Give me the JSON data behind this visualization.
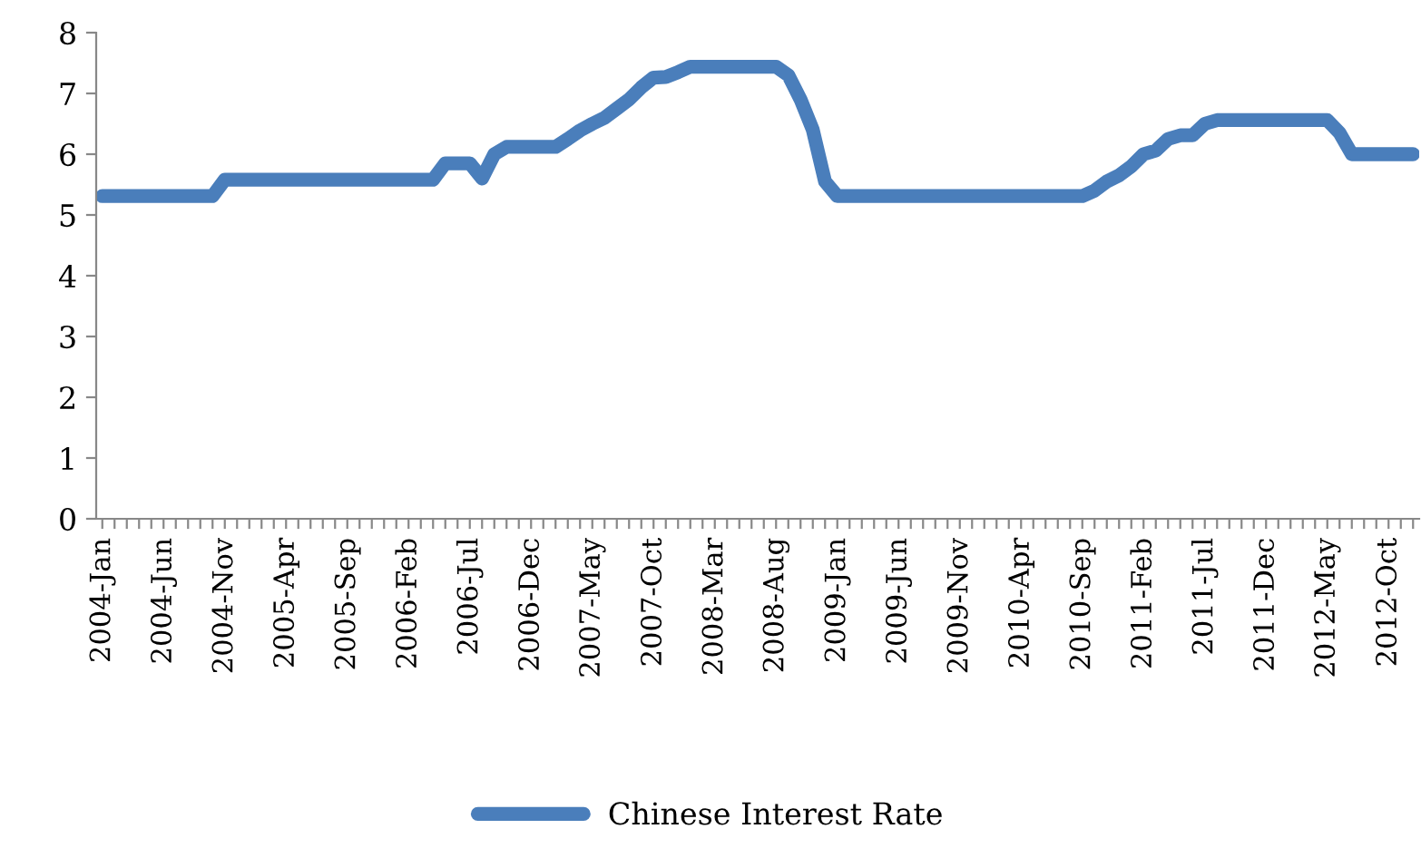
{
  "chart_data": {
    "type": "line",
    "categories": [
      "2004-Jan",
      null,
      null,
      null,
      null,
      "2004-Jun",
      null,
      null,
      null,
      null,
      "2004-Nov",
      null,
      null,
      null,
      null,
      "2005-Apr",
      null,
      null,
      null,
      null,
      "2005-Sep",
      null,
      null,
      null,
      null,
      "2006-Feb",
      null,
      null,
      null,
      null,
      "2006-Jul",
      null,
      null,
      null,
      null,
      "2006-Dec",
      null,
      null,
      null,
      null,
      "2007-May",
      null,
      null,
      null,
      null,
      "2007-Oct",
      null,
      null,
      null,
      null,
      "2008-Mar",
      null,
      null,
      null,
      null,
      "2008-Aug",
      null,
      null,
      null,
      null,
      "2009-Jan",
      null,
      null,
      null,
      null,
      "2009-Jun",
      null,
      null,
      null,
      null,
      "2009-Nov",
      null,
      null,
      null,
      null,
      "2010-Apr",
      null,
      null,
      null,
      null,
      "2010-Sep",
      null,
      null,
      null,
      null,
      "2011-Feb",
      null,
      null,
      null,
      null,
      "2011-Jul",
      null,
      null,
      null,
      null,
      "2011-Dec",
      null,
      null,
      null,
      null,
      "2012-May",
      null,
      null,
      null,
      null,
      "2012-Oct",
      null,
      null
    ],
    "series": [
      {
        "name": "Chinese Interest Rate",
        "color": "#4a7ebb",
        "values": [
          5.31,
          5.31,
          5.31,
          5.31,
          5.31,
          5.31,
          5.31,
          5.31,
          5.31,
          5.31,
          5.58,
          5.58,
          5.58,
          5.58,
          5.58,
          5.58,
          5.58,
          5.58,
          5.58,
          5.58,
          5.58,
          5.58,
          5.58,
          5.58,
          5.58,
          5.58,
          5.58,
          5.58,
          5.85,
          5.85,
          5.85,
          5.6,
          6.0,
          6.12,
          6.12,
          6.12,
          6.12,
          6.12,
          6.25,
          6.39,
          6.5,
          6.6,
          6.75,
          6.9,
          7.1,
          7.26,
          7.27,
          7.35,
          7.44,
          7.44,
          7.44,
          7.44,
          7.44,
          7.44,
          7.44,
          7.44,
          7.3,
          6.9,
          6.4,
          5.55,
          5.31,
          5.31,
          5.31,
          5.31,
          5.31,
          5.31,
          5.31,
          5.31,
          5.31,
          5.31,
          5.31,
          5.31,
          5.31,
          5.31,
          5.31,
          5.31,
          5.31,
          5.31,
          5.31,
          5.31,
          5.31,
          5.4,
          5.55,
          5.65,
          5.8,
          6.0,
          6.06,
          6.25,
          6.31,
          6.31,
          6.5,
          6.56,
          6.56,
          6.56,
          6.56,
          6.56,
          6.56,
          6.56,
          6.56,
          6.56,
          6.56,
          6.35,
          6.0,
          6.0,
          6.0,
          6.0,
          6.0,
          6.0
        ]
      }
    ],
    "ylim": [
      0,
      8
    ],
    "yticks": [
      0,
      1,
      2,
      3,
      4,
      5,
      6,
      7,
      8
    ],
    "grid": false,
    "legend": "bottom",
    "marker": "none",
    "line_style": "solid"
  }
}
